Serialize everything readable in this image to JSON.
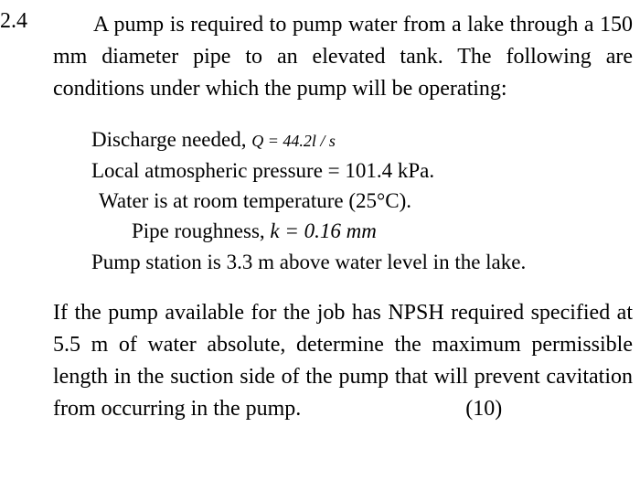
{
  "question": {
    "number": "2.4",
    "intro": "A pump is required to pump water from a lake through a 150 mm diameter pipe to an elevated tank. The following are conditions under which the pump will be operating:",
    "conditions": {
      "discharge_label": "Discharge needed, ",
      "discharge_symbol": "Q = 44.2l / s",
      "atm_pressure": "Local atmospheric pressure  =  101.4 kPa.",
      "water_temp": "Water is at room temperature (25°C).",
      "roughness_label": "Pipe roughness, ",
      "roughness_value": "k = 0.16 mm",
      "station": "Pump station is 3.3 m above water level in the lake."
    },
    "final": "If the pump available for the job has NPSH required specified at 5.5 m of water absolute, determine the maximum permissible length in the suction side of the pump that will prevent cavitation from occurring in the pump.",
    "marks": "(10)"
  },
  "style": {
    "font_family": "Times New Roman",
    "font_size_main": 24,
    "font_size_formula": 18,
    "text_color": "#000000",
    "background_color": "#ffffff"
  }
}
